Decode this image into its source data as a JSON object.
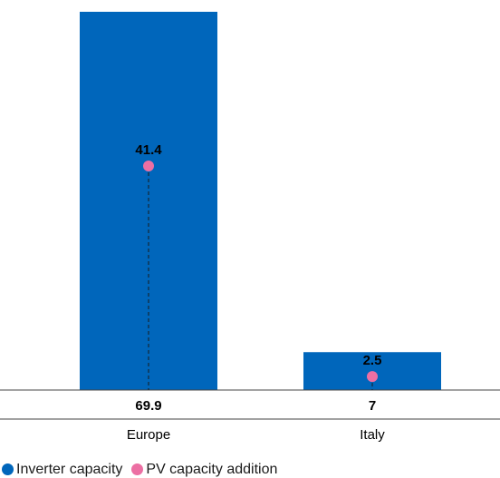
{
  "chart_data": {
    "type": "bar",
    "categories": [
      "Europe",
      "Italy"
    ],
    "series": [
      {
        "name": "Inverter capacity",
        "type": "bar",
        "values": [
          69.9,
          7
        ],
        "color": "#0066bb"
      },
      {
        "name": "PV capacity addition",
        "type": "point",
        "values": [
          41.4,
          2.5
        ],
        "color": "#ec6fa3"
      }
    ],
    "bar_value_labels": [
      "69.9",
      "7"
    ],
    "point_value_labels": [
      "41.4",
      "2.5"
    ],
    "ylim": [
      0,
      70
    ],
    "grid": false,
    "legend_position": "bottom-left"
  }
}
